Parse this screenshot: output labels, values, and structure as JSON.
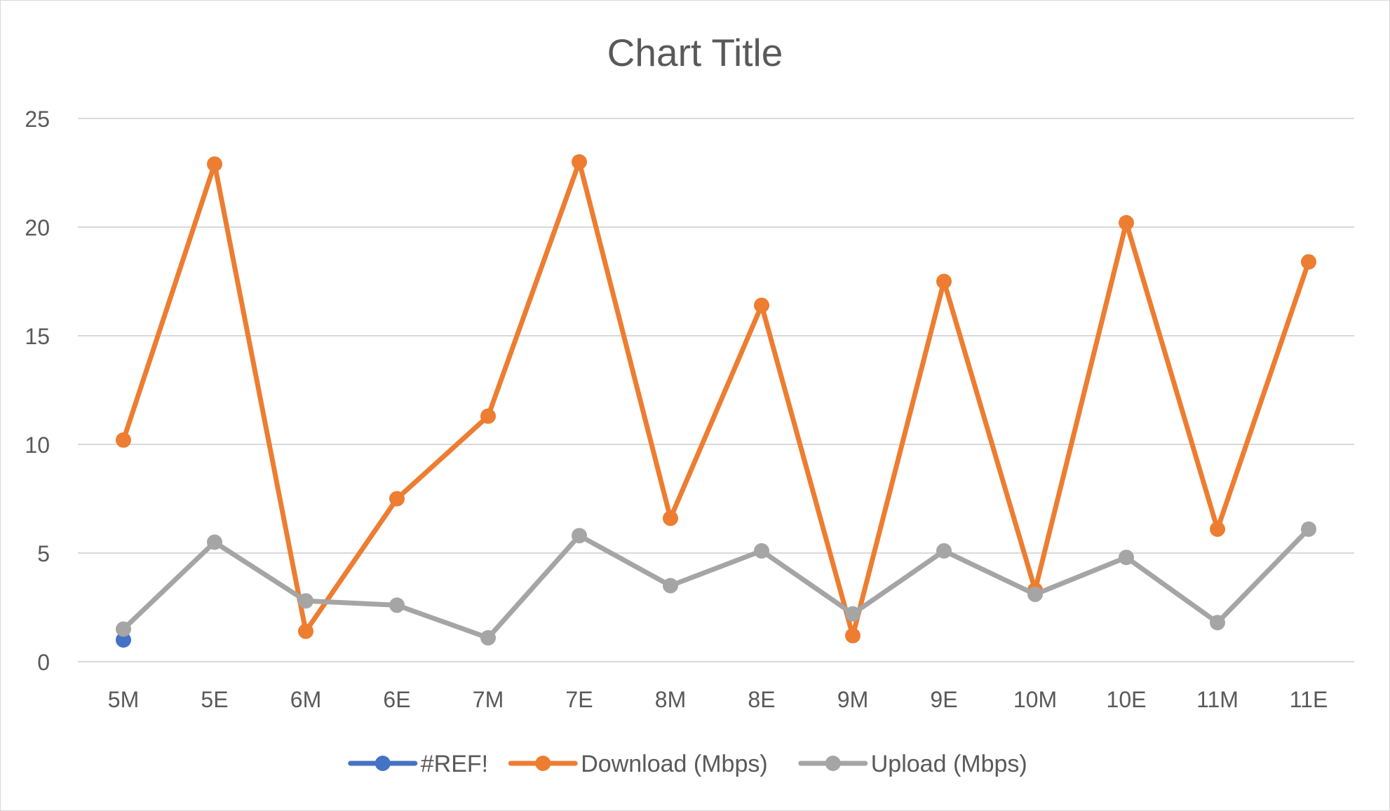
{
  "chart_data": {
    "type": "line",
    "title": "Chart Title",
    "xlabel": "",
    "ylabel": "",
    "categories": [
      "5M",
      "5E",
      "6M",
      "6E",
      "7M",
      "7E",
      "8M",
      "8E",
      "9M",
      "9E",
      "10M",
      "10E",
      "11M",
      "11E"
    ],
    "ylim": [
      0,
      25
    ],
    "yticks": [
      0,
      5,
      10,
      15,
      20,
      25
    ],
    "grid": true,
    "legend_position": "bottom",
    "series": [
      {
        "name": "#REF!",
        "color": "#4472C4",
        "values": [
          1.0,
          null,
          null,
          null,
          null,
          null,
          null,
          null,
          null,
          null,
          null,
          null,
          null,
          null
        ]
      },
      {
        "name": "Download (Mbps)",
        "color": "#ED7D31",
        "values": [
          10.2,
          22.9,
          1.4,
          7.5,
          11.3,
          23.0,
          6.6,
          16.4,
          1.2,
          17.5,
          3.3,
          20.2,
          6.1,
          18.4
        ]
      },
      {
        "name": "Upload (Mbps)",
        "color": "#A5A5A5",
        "values": [
          1.5,
          5.5,
          2.8,
          2.6,
          1.1,
          5.8,
          3.5,
          5.1,
          2.2,
          5.1,
          3.1,
          4.8,
          1.8,
          6.1
        ]
      }
    ]
  }
}
